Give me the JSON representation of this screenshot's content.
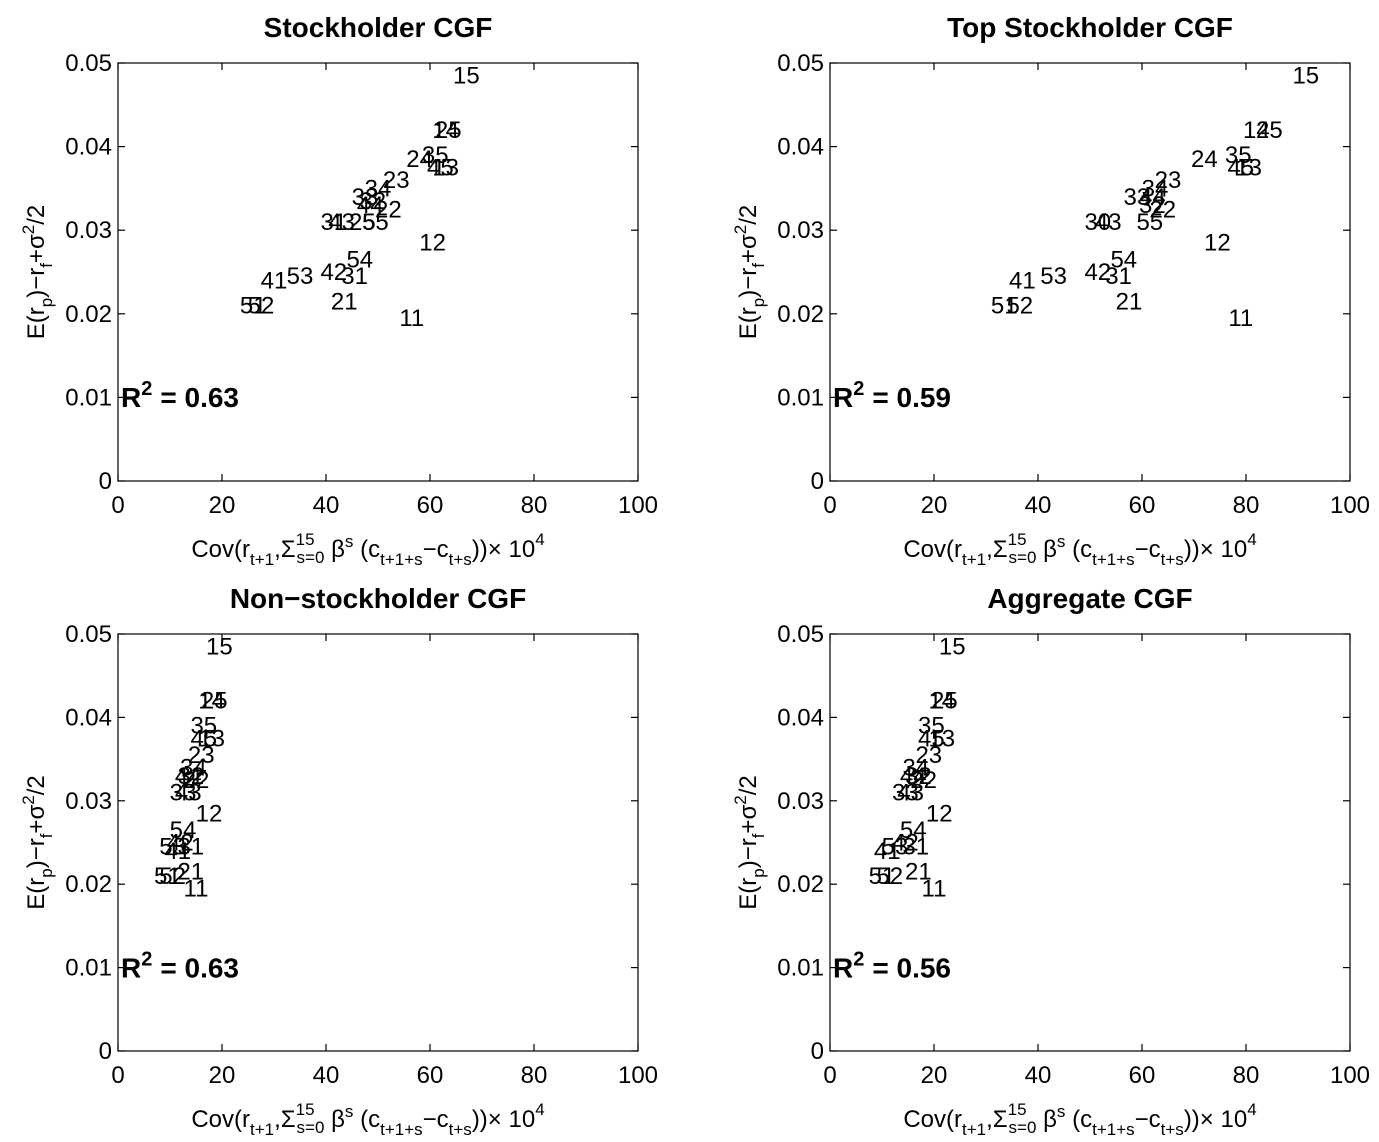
{
  "chart_data": [
    {
      "type": "scatter",
      "title": "Stockholder CGF",
      "xlim": [
        0,
        100
      ],
      "ylim": [
        0,
        0.05
      ],
      "xticks": [
        "0",
        "20",
        "40",
        "60",
        "80",
        "100"
      ],
      "yticks": [
        "0",
        "0.01",
        "0.02",
        "0.03",
        "0.04",
        "0.05"
      ],
      "grid": false,
      "r2_label": "R",
      "r2_exp": "2",
      "r2_value": "= 0.63",
      "points": [
        {
          "label": "15",
          "x": 67,
          "y": 0.0485
        },
        {
          "label": "14",
          "x": 63,
          "y": 0.042
        },
        {
          "label": "25",
          "x": 63.5,
          "y": 0.042
        },
        {
          "label": "24",
          "x": 58,
          "y": 0.0385
        },
        {
          "label": "35",
          "x": 61,
          "y": 0.039
        },
        {
          "label": "45",
          "x": 62,
          "y": 0.0375
        },
        {
          "label": "13",
          "x": 63,
          "y": 0.0375
        },
        {
          "label": "23",
          "x": 53.5,
          "y": 0.036
        },
        {
          "label": "34",
          "x": 50,
          "y": 0.035
        },
        {
          "label": "33",
          "x": 47.5,
          "y": 0.034
        },
        {
          "label": "44",
          "x": 48.5,
          "y": 0.033
        },
        {
          "label": "32",
          "x": 49,
          "y": 0.0335
        },
        {
          "label": "22",
          "x": 52,
          "y": 0.0325
        },
        {
          "label": "25",
          "x": 47,
          "y": 0.031
        },
        {
          "label": "55",
          "x": 49.5,
          "y": 0.031
        },
        {
          "label": "31",
          "x": 41.5,
          "y": 0.031
        },
        {
          "label": "43",
          "x": 43,
          "y": 0.031
        },
        {
          "label": "12",
          "x": 60.5,
          "y": 0.0285
        },
        {
          "label": "54",
          "x": 46.5,
          "y": 0.0265
        },
        {
          "label": "42",
          "x": 41.5,
          "y": 0.025
        },
        {
          "label": "31",
          "x": 45.5,
          "y": 0.0245
        },
        {
          "label": "41",
          "x": 30,
          "y": 0.024
        },
        {
          "label": "53",
          "x": 35,
          "y": 0.0245
        },
        {
          "label": "21",
          "x": 43.5,
          "y": 0.0215
        },
        {
          "label": "51",
          "x": 26,
          "y": 0.021
        },
        {
          "label": "52",
          "x": 27.5,
          "y": 0.021
        },
        {
          "label": "11",
          "x": 56.5,
          "y": 0.0195
        }
      ]
    },
    {
      "type": "scatter",
      "title": "Top Stockholder CGF",
      "xlim": [
        0,
        100
      ],
      "ylim": [
        0,
        0.05
      ],
      "xticks": [
        "0",
        "20",
        "40",
        "60",
        "80",
        "100"
      ],
      "yticks": [
        "0",
        "0.01",
        "0.02",
        "0.03",
        "0.04",
        "0.05"
      ],
      "grid": false,
      "r2_label": "R",
      "r2_exp": "2",
      "r2_value": "= 0.59",
      "points": [
        {
          "label": "15",
          "x": 91.5,
          "y": 0.0485
        },
        {
          "label": "14",
          "x": 82,
          "y": 0.042
        },
        {
          "label": "25",
          "x": 84.5,
          "y": 0.042
        },
        {
          "label": "24",
          "x": 72,
          "y": 0.0385
        },
        {
          "label": "35",
          "x": 78.5,
          "y": 0.039
        },
        {
          "label": "45",
          "x": 79,
          "y": 0.0375
        },
        {
          "label": "13",
          "x": 80.5,
          "y": 0.0375
        },
        {
          "label": "23",
          "x": 65,
          "y": 0.036
        },
        {
          "label": "34",
          "x": 62.5,
          "y": 0.035
        },
        {
          "label": "33",
          "x": 59,
          "y": 0.034
        },
        {
          "label": "44",
          "x": 62,
          "y": 0.034
        },
        {
          "label": "32",
          "x": 62,
          "y": 0.033
        },
        {
          "label": "22",
          "x": 64,
          "y": 0.0325
        },
        {
          "label": "55",
          "x": 61.5,
          "y": 0.031
        },
        {
          "label": "30",
          "x": 51.5,
          "y": 0.031
        },
        {
          "label": "43",
          "x": 53.5,
          "y": 0.031
        },
        {
          "label": "12",
          "x": 74.5,
          "y": 0.0285
        },
        {
          "label": "54",
          "x": 56.5,
          "y": 0.0265
        },
        {
          "label": "42",
          "x": 51.5,
          "y": 0.025
        },
        {
          "label": "31",
          "x": 55.5,
          "y": 0.0245
        },
        {
          "label": "41",
          "x": 37,
          "y": 0.024
        },
        {
          "label": "53",
          "x": 43,
          "y": 0.0245
        },
        {
          "label": "21",
          "x": 57.5,
          "y": 0.0215
        },
        {
          "label": "51",
          "x": 33.5,
          "y": 0.021
        },
        {
          "label": "52",
          "x": 36.5,
          "y": 0.021
        },
        {
          "label": "11",
          "x": 79,
          "y": 0.0195
        }
      ]
    },
    {
      "type": "scatter",
      "title": "Non−stockholder CGF",
      "xlim": [
        0,
        100
      ],
      "ylim": [
        0,
        0.05
      ],
      "xticks": [
        "0",
        "20",
        "40",
        "60",
        "80",
        "100"
      ],
      "yticks": [
        "0",
        "0.01",
        "0.02",
        "0.03",
        "0.04",
        "0.05"
      ],
      "grid": false,
      "r2_label": "R",
      "r2_exp": "2",
      "r2_value": "= 0.63",
      "points": [
        {
          "label": "15",
          "x": 19.5,
          "y": 0.0485
        },
        {
          "label": "14",
          "x": 18,
          "y": 0.042
        },
        {
          "label": "25",
          "x": 18.5,
          "y": 0.042
        },
        {
          "label": "35",
          "x": 16.5,
          "y": 0.039
        },
        {
          "label": "45",
          "x": 16.5,
          "y": 0.0375
        },
        {
          "label": "13",
          "x": 18,
          "y": 0.0375
        },
        {
          "label": "23",
          "x": 16,
          "y": 0.0355
        },
        {
          "label": "34",
          "x": 14.5,
          "y": 0.034
        },
        {
          "label": "44",
          "x": 13.5,
          "y": 0.033
        },
        {
          "label": "32",
          "x": 14,
          "y": 0.033
        },
        {
          "label": "22",
          "x": 15,
          "y": 0.0325
        },
        {
          "label": "33",
          "x": 12.5,
          "y": 0.031
        },
        {
          "label": "43",
          "x": 13.5,
          "y": 0.031
        },
        {
          "label": "12",
          "x": 17.5,
          "y": 0.0285
        },
        {
          "label": "54",
          "x": 12.5,
          "y": 0.0265
        },
        {
          "label": "53",
          "x": 10.5,
          "y": 0.0245
        },
        {
          "label": "42",
          "x": 12,
          "y": 0.025
        },
        {
          "label": "31",
          "x": 14,
          "y": 0.0245
        },
        {
          "label": "41",
          "x": 11.5,
          "y": 0.024
        },
        {
          "label": "21",
          "x": 14,
          "y": 0.0215
        },
        {
          "label": "51",
          "x": 9.5,
          "y": 0.021
        },
        {
          "label": "52",
          "x": 10.5,
          "y": 0.021
        },
        {
          "label": "11",
          "x": 15,
          "y": 0.0195
        }
      ]
    },
    {
      "type": "scatter",
      "title": "Aggregate CGF",
      "xlim": [
        0,
        100
      ],
      "ylim": [
        0,
        0.05
      ],
      "xticks": [
        "0",
        "20",
        "40",
        "60",
        "80",
        "100"
      ],
      "yticks": [
        "0",
        "0.01",
        "0.02",
        "0.03",
        "0.04",
        "0.05"
      ],
      "grid": false,
      "r2_label": "R",
      "r2_exp": "2",
      "r2_value": "= 0.56",
      "points": [
        {
          "label": "15",
          "x": 23.5,
          "y": 0.0485
        },
        {
          "label": "14",
          "x": 21.5,
          "y": 0.042
        },
        {
          "label": "25",
          "x": 22,
          "y": 0.042
        },
        {
          "label": "35",
          "x": 19.5,
          "y": 0.039
        },
        {
          "label": "45",
          "x": 19.5,
          "y": 0.0375
        },
        {
          "label": "13",
          "x": 21.5,
          "y": 0.0375
        },
        {
          "label": "23",
          "x": 19,
          "y": 0.0355
        },
        {
          "label": "34",
          "x": 16.5,
          "y": 0.034
        },
        {
          "label": "44",
          "x": 16,
          "y": 0.033
        },
        {
          "label": "32",
          "x": 17,
          "y": 0.033
        },
        {
          "label": "22",
          "x": 18,
          "y": 0.0325
        },
        {
          "label": "33",
          "x": 14.5,
          "y": 0.031
        },
        {
          "label": "43",
          "x": 15.5,
          "y": 0.031
        },
        {
          "label": "12",
          "x": 21,
          "y": 0.0285
        },
        {
          "label": "54",
          "x": 16,
          "y": 0.0265
        },
        {
          "label": "41",
          "x": 11,
          "y": 0.024
        },
        {
          "label": "53",
          "x": 12.5,
          "y": 0.0245
        },
        {
          "label": "42",
          "x": 14.5,
          "y": 0.025
        },
        {
          "label": "31",
          "x": 16.5,
          "y": 0.0245
        },
        {
          "label": "21",
          "x": 17,
          "y": 0.0215
        },
        {
          "label": "51",
          "x": 10,
          "y": 0.021
        },
        {
          "label": "52",
          "x": 11.5,
          "y": 0.021
        },
        {
          "label": "11",
          "x": 20,
          "y": 0.0195
        }
      ]
    }
  ],
  "axis_text": {
    "y_main": "E(r",
    "y_sub_p": "p",
    "y_mid": ")−r",
    "y_sub_f": "f",
    "y_plus": "+σ",
    "y_sup_2": "2",
    "y_end": "/2",
    "x_cov": "Cov(r",
    "x_sub_t1": "t+1",
    "x_comma_sigma": ",Σ",
    "x_sup_15": "15",
    "x_sub_s0": "s=0",
    "x_beta": " β",
    "x_sup_s": "s",
    "x_paren_c": " (c",
    "x_sub_t1s": "t+1+s",
    "x_minus_c": "−c",
    "x_sub_ts": "t+s",
    "x_close_times": "))× 10",
    "x_sup_4": "4"
  }
}
